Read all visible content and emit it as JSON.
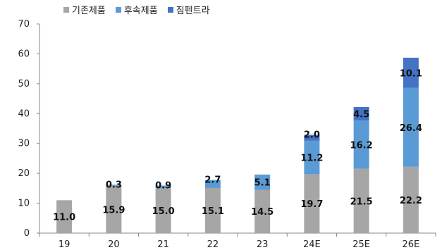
{
  "chart_data": {
    "type": "bar",
    "stacked": true,
    "categories": [
      "19",
      "20",
      "21",
      "22",
      "23",
      "24E",
      "25E",
      "26E"
    ],
    "series": [
      {
        "name": "기존제품",
        "color": "#a6a6a6",
        "values": [
          11.0,
          15.9,
          15.0,
          15.1,
          14.5,
          19.7,
          21.5,
          22.2
        ],
        "labels": [
          "11.0",
          "15.9",
          "15.0",
          "15.1",
          "14.5",
          "19.7",
          "21.5",
          "22.2"
        ]
      },
      {
        "name": "후속제품",
        "color": "#5b9bd5",
        "values": [
          0,
          0.3,
          0.9,
          2.7,
          5.1,
          11.2,
          16.2,
          26.4
        ],
        "labels": [
          "",
          "0.3",
          "0.9",
          "2.7",
          "5.1",
          "11.2",
          "16.2",
          "26.4"
        ]
      },
      {
        "name": "짐펜트라",
        "color": "#4472c4",
        "values": [
          0,
          0,
          0,
          0,
          0,
          2.0,
          4.5,
          10.1
        ],
        "labels": [
          "",
          "",
          "",
          "",
          "",
          "2.0",
          "4.5",
          "10.1"
        ]
      }
    ],
    "ylim": [
      0,
      70
    ],
    "yticks": [
      "0",
      "10",
      "20",
      "30",
      "40",
      "50",
      "60",
      "70"
    ],
    "grid": false,
    "legend_position": "top-left"
  }
}
